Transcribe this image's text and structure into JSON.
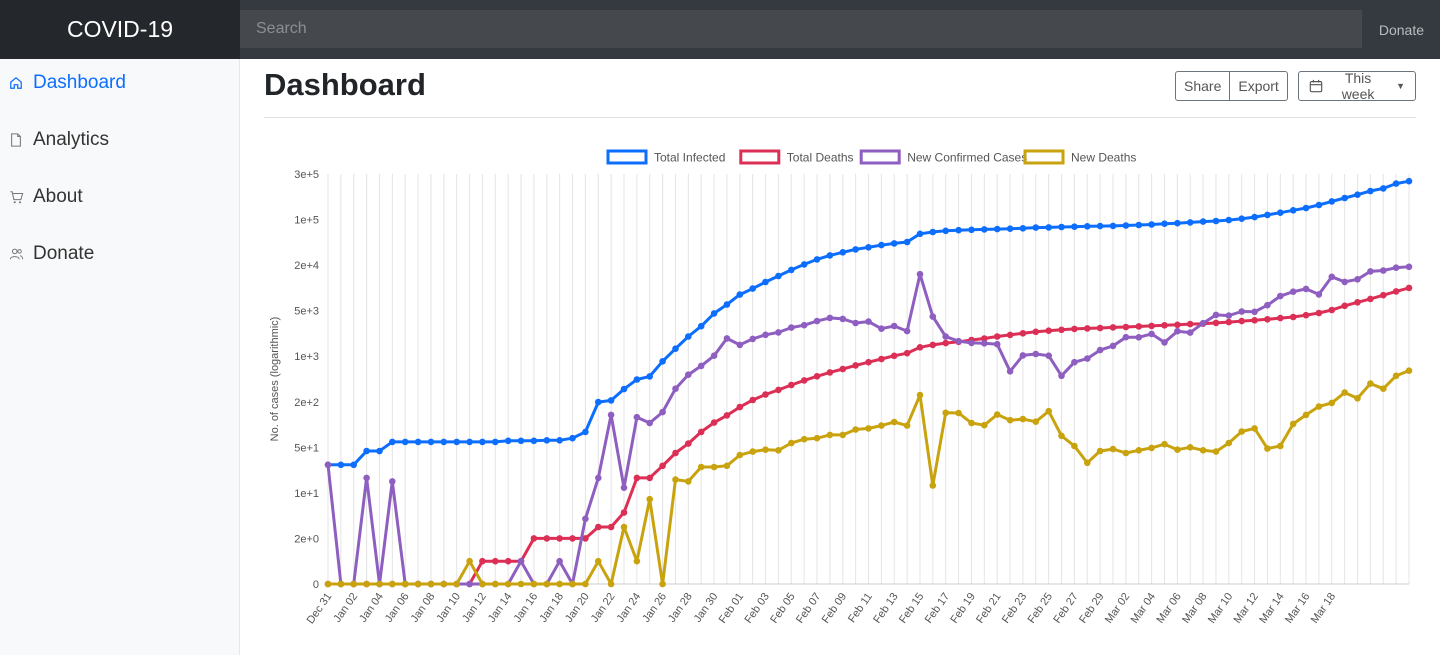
{
  "app": {
    "brand": "COVID-19"
  },
  "topbar": {
    "search_placeholder": "Search",
    "donate_label": "Donate"
  },
  "sidebar": {
    "items": [
      {
        "label": "Dashboard",
        "icon": "home-icon",
        "active": true
      },
      {
        "label": "Analytics",
        "icon": "file-icon",
        "active": false
      },
      {
        "label": "About",
        "icon": "cart-icon",
        "active": false
      },
      {
        "label": "Donate",
        "icon": "users-icon",
        "active": false
      }
    ]
  },
  "main": {
    "title": "Dashboard",
    "share_label": "Share",
    "export_label": "Export",
    "range_label": "This week",
    "range_icon": "calendar-icon"
  },
  "colors": {
    "accent": "#0d6efd",
    "total_infected": "#0d6efd",
    "total_deaths": "#dc2f55",
    "new_confirmed": "#8e5ec0",
    "new_deaths": "#c9a30e"
  },
  "chart_data": {
    "type": "line",
    "ylabel": "No. of cases (logarithmic)",
    "xlabel": "",
    "y_scale": "symlog",
    "yticks": [
      {
        "label": "0",
        "value": 0
      },
      {
        "label": "2e+0",
        "value": 2
      },
      {
        "label": "1e+1",
        "value": 10
      },
      {
        "label": "5e+1",
        "value": 50
      },
      {
        "label": "2e+2",
        "value": 200
      },
      {
        "label": "1e+3",
        "value": 1000
      },
      {
        "label": "5e+3",
        "value": 5000
      },
      {
        "label": "2e+4",
        "value": 20000
      },
      {
        "label": "1e+5",
        "value": 100000
      },
      {
        "label": "3e+5",
        "value": 300000
      }
    ],
    "xticks": [
      "Dec 31",
      "Jan 02",
      "Jan 04",
      "Jan 06",
      "Jan 08",
      "Jan 10",
      "Jan 12",
      "Jan 14",
      "Jan 16",
      "Jan 18",
      "Jan 20",
      "Jan 22",
      "Jan 24",
      "Jan 26",
      "Jan 28",
      "Jan 30",
      "Feb 01",
      "Feb 03",
      "Feb 05",
      "Feb 07",
      "Feb 09",
      "Feb 11",
      "Feb 13",
      "Feb 15",
      "Feb 17",
      "Feb 19",
      "Feb 21",
      "Feb 23",
      "Feb 25",
      "Feb 27",
      "Feb 29",
      "Mar 02",
      "Mar 04",
      "Mar 06",
      "Mar 08",
      "Mar 10",
      "Mar 12",
      "Mar 14",
      "Mar 16",
      "Mar 18"
    ],
    "grid": true,
    "legend_position": "top-center",
    "series": [
      {
        "name": "Total Infected",
        "color": "#0d6efd",
        "values": [
          27,
          27,
          27,
          44,
          44,
          59,
          59,
          59,
          59,
          59,
          59,
          59,
          59,
          59,
          61,
          61,
          61,
          62,
          62,
          66,
          80,
          198,
          210,
          313,
          439,
          490,
          835,
          1303,
          2004,
          2892,
          4547,
          6040,
          8155,
          9790,
          11979,
          14363,
          17264,
          20541,
          24448,
          28179,
          31448,
          34894,
          37562,
          40576,
          43102,
          45188,
          60357,
          64453,
          67100,
          68600,
          69600,
          70600,
          71400,
          72500,
          73300,
          75200,
          75800,
          76800,
          77800,
          78800,
          79300,
          80000,
          81000,
          82500,
          84000,
          86500,
          88000,
          90500,
          93000,
          95000,
          98000,
          102000,
          106000,
          112000,
          118000,
          125000,
          132000,
          142000,
          155000,
          168000,
          182000,
          199000,
          212000,
          238000,
          252000
        ]
      },
      {
        "name": "Total Deaths",
        "color": "#dc2f55",
        "values": [
          0,
          0,
          0,
          0,
          0,
          0,
          0,
          0,
          0,
          0,
          0,
          0,
          1,
          1,
          1,
          1,
          2,
          2,
          2,
          2,
          2,
          3,
          3,
          5,
          17,
          17,
          26,
          41,
          56,
          80,
          106,
          132,
          170,
          213,
          259,
          304,
          362,
          426,
          492,
          564,
          637,
          722,
          811,
          908,
          1016,
          1113,
          1371,
          1492,
          1588,
          1662,
          1775,
          1871,
          2010,
          2126,
          2250,
          2366,
          2467,
          2540,
          2630,
          2670,
          2710,
          2770,
          2810,
          2870,
          2920,
          2980,
          3040,
          3110,
          3160,
          3250,
          3340,
          3460,
          3560,
          3680,
          3850,
          4000,
          4260,
          4600,
          5100,
          5800,
          6450,
          7150,
          8000,
          9000,
          10000
        ]
      },
      {
        "name": "New Confirmed Cases",
        "color": "#8e5ec0",
        "values": [
          27,
          0,
          0,
          17,
          0,
          15,
          0,
          0,
          0,
          0,
          0,
          0,
          0,
          0,
          0,
          1,
          0,
          0,
          1,
          0,
          4,
          17,
          134,
          12,
          125,
          105,
          146,
          317,
          520,
          711,
          1017,
          1880,
          1490,
          1844,
          2131,
          2319,
          2748,
          2991,
          3459,
          3875,
          3740,
          3231,
          3395,
          2641,
          2907,
          2425,
          15153,
          4050,
          2000,
          1700,
          1600,
          1580,
          1530,
          587,
          1030,
          1080,
          1020,
          500,
          810,
          920,
          1240,
          1440,
          1960,
          1950,
          2200,
          1630,
          2420,
          2300,
          3210,
          4310,
          4200,
          4850,
          4800,
          5900,
          7800,
          8900,
          9700,
          8200,
          14000,
          12000,
          13000,
          16500,
          17000,
          18500,
          19000
        ]
      },
      {
        "name": "New Deaths",
        "color": "#c9a30e",
        "values": [
          0,
          0,
          0,
          0,
          0,
          0,
          0,
          0,
          0,
          0,
          0,
          1,
          0,
          0,
          0,
          0,
          0,
          0,
          0,
          0,
          0,
          1,
          0,
          3,
          1,
          8,
          0,
          16,
          15,
          25,
          25,
          26,
          38,
          43,
          46,
          45,
          57,
          64,
          66,
          73,
          73,
          86,
          89,
          97,
          108,
          97,
          254,
          13,
          143,
          142,
          105,
          98,
          136,
          114,
          118,
          109,
          150,
          71,
          52,
          29,
          44,
          47,
          41,
          45,
          49,
          55,
          46,
          50,
          45,
          43,
          57,
          81,
          89,
          48,
          52,
          102,
          134,
          173,
          193,
          277,
          226,
          380,
          318,
          500,
          600
        ]
      }
    ]
  }
}
